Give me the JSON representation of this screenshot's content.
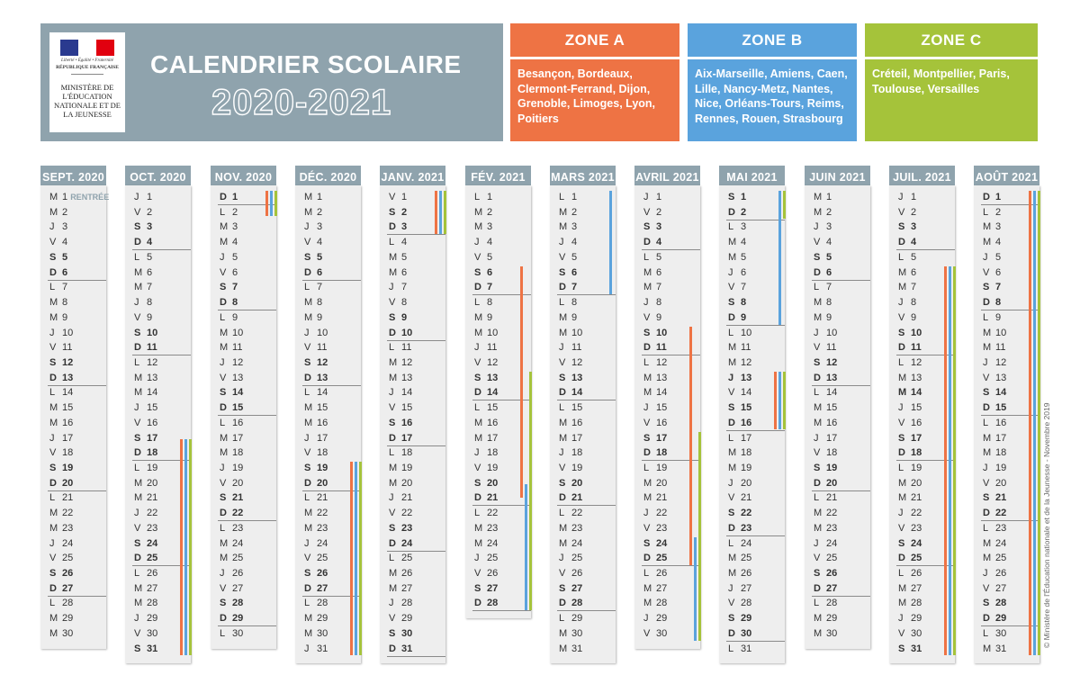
{
  "header": {
    "title_line1": "CALENDRIER SCOLAIRE",
    "title_line2": "2020-2021",
    "logo": {
      "tagline": "Liberté • Égalité • Fraternité",
      "republic": "RÉPUBLIQUE FRANÇAISE",
      "ministry": "MINISTÈRE DE L'ÉDUCATION NATIONALE ET DE LA JEUNESSE",
      "flag_colors": [
        "#2a3a8f",
        "#ffffff",
        "#e1000f"
      ]
    }
  },
  "zones": [
    {
      "key": "A",
      "label": "ZONE A",
      "color": "#ee7344",
      "cities": "Besançon, Bordeaux, Clermont-Ferrand, Dijon, Grenoble, Limoges, Lyon, Poitiers"
    },
    {
      "key": "B",
      "label": "ZONE B",
      "color": "#5aa3dd",
      "cities": "Aix-Marseille, Amiens, Caen, Lille, Nancy-Metz, Nantes, Nice, Orléans-Tours, Reims, Rennes, Rouen, Strasbourg"
    },
    {
      "key": "C",
      "label": "ZONE C",
      "color": "#a5c33a",
      "cities": "Créteil, Montpellier, Paris, Toulouse, Versailles"
    }
  ],
  "months": [
    {
      "name": "SEPT. 2020",
      "first_weekday": 2,
      "days": 30,
      "notes": {
        "1": "RENTRÉE"
      }
    },
    {
      "name": "OCT. 2020",
      "first_weekday": 4,
      "days": 31
    },
    {
      "name": "NOV. 2020",
      "first_weekday": 0,
      "days": 30
    },
    {
      "name": "DÉC. 2020",
      "first_weekday": 2,
      "days": 31
    },
    {
      "name": "JANV. 2021",
      "first_weekday": 5,
      "days": 31
    },
    {
      "name": "FÉV. 2021",
      "first_weekday": 1,
      "days": 28
    },
    {
      "name": "MARS 2021",
      "first_weekday": 1,
      "days": 31
    },
    {
      "name": "AVRIL 2021",
      "first_weekday": 4,
      "days": 30
    },
    {
      "name": "MAI 2021",
      "first_weekday": 6,
      "days": 31,
      "bold_days": [
        13
      ]
    },
    {
      "name": "JUIN 2021",
      "first_weekday": 2,
      "days": 30
    },
    {
      "name": "JUIL. 2021",
      "first_weekday": 4,
      "days": 31,
      "bold_days": [
        14
      ]
    },
    {
      "name": "AOÛT 2021",
      "first_weekday": 0,
      "days": 31
    }
  ],
  "weekday_letters": [
    "D",
    "L",
    "M",
    "M",
    "J",
    "V",
    "S"
  ],
  "holidays": [
    {
      "month": 1,
      "from": 17.5,
      "to": 31,
      "zones": [
        "A",
        "B",
        "C"
      ]
    },
    {
      "month": 2,
      "from": 1,
      "to": 1.8,
      "zones": [
        "A",
        "B",
        "C"
      ]
    },
    {
      "month": 3,
      "from": 19,
      "to": 31,
      "zones": [
        "A",
        "B",
        "C"
      ]
    },
    {
      "month": 4,
      "from": 1,
      "to": 3,
      "zones": [
        "A",
        "B",
        "C"
      ]
    },
    {
      "month": 5,
      "from": 6,
      "to": 20.5,
      "zones": [
        "A"
      ]
    },
    {
      "month": 5,
      "from": 13,
      "to": 28,
      "zones": [
        "C"
      ]
    },
    {
      "month": 5,
      "from": 20.5,
      "to": 28,
      "zones": [
        "B"
      ]
    },
    {
      "month": 6,
      "from": 1,
      "to": 7,
      "zones": [
        "B"
      ]
    },
    {
      "month": 7,
      "from": 10,
      "to": 25,
      "zones": [
        "A"
      ]
    },
    {
      "month": 7,
      "from": 17,
      "to": 30,
      "zones": [
        "C"
      ]
    },
    {
      "month": 7,
      "from": 24,
      "to": 30,
      "zones": [
        "B"
      ]
    },
    {
      "month": 8,
      "from": 1,
      "to": 2,
      "zones": [
        "C"
      ]
    },
    {
      "month": 8,
      "from": 1,
      "to": 9,
      "zones": [
        "B"
      ]
    },
    {
      "month": 8,
      "from": 13,
      "to": 16,
      "zones": [
        "A",
        "B",
        "C"
      ]
    },
    {
      "month": 10,
      "from": 6,
      "to": 31,
      "zones": [
        "A",
        "B",
        "C"
      ]
    },
    {
      "month": 11,
      "from": 1,
      "to": 31,
      "zones": [
        "A",
        "B",
        "C"
      ]
    }
  ],
  "copyright": "© Ministère de l'Éducation nationale et de la Jeunesse - Novembre 2019"
}
